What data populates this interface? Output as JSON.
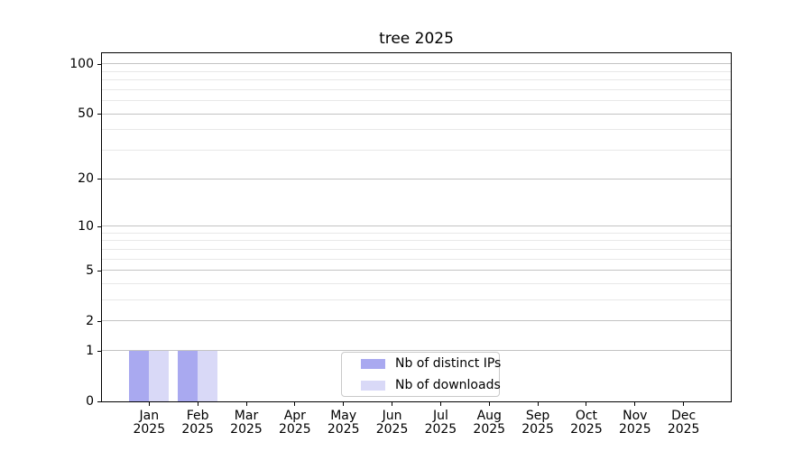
{
  "figure": {
    "background": "#ffffff"
  },
  "chart_data": {
    "type": "bar",
    "title": "tree 2025",
    "categories": [
      {
        "month": "Jan",
        "year": "2025"
      },
      {
        "month": "Feb",
        "year": "2025"
      },
      {
        "month": "Mar",
        "year": "2025"
      },
      {
        "month": "Apr",
        "year": "2025"
      },
      {
        "month": "May",
        "year": "2025"
      },
      {
        "month": "Jun",
        "year": "2025"
      },
      {
        "month": "Jul",
        "year": "2025"
      },
      {
        "month": "Aug",
        "year": "2025"
      },
      {
        "month": "Sep",
        "year": "2025"
      },
      {
        "month": "Oct",
        "year": "2025"
      },
      {
        "month": "Nov",
        "year": "2025"
      },
      {
        "month": "Dec",
        "year": "2025"
      }
    ],
    "series": [
      {
        "name": "Nb of distinct IPs",
        "color": "#a9a9f0",
        "values": [
          1,
          1,
          0,
          0,
          0,
          0,
          0,
          0,
          0,
          0,
          0,
          0
        ]
      },
      {
        "name": "Nb of downloads",
        "color": "#d9d9f7",
        "values": [
          1,
          1,
          0,
          0,
          0,
          0,
          0,
          0,
          0,
          0,
          0,
          0
        ]
      }
    ],
    "xlabel": "",
    "ylabel": "",
    "yscale": "log1p",
    "ylim": [
      0,
      116
    ],
    "yticks_major": [
      0,
      1,
      2,
      5,
      10,
      20,
      50,
      100
    ],
    "yticks_minor": [
      3,
      4,
      6,
      7,
      8,
      9,
      30,
      40,
      60,
      70,
      80,
      90
    ],
    "grid": "horizontal-major-and-minor",
    "legend_position": "lower-center",
    "colors": {
      "grid_major": "#c3c3c3",
      "grid_minor": "#e8e8e8",
      "spine": "#000000",
      "tick": "#000000",
      "text": "#000000"
    }
  }
}
